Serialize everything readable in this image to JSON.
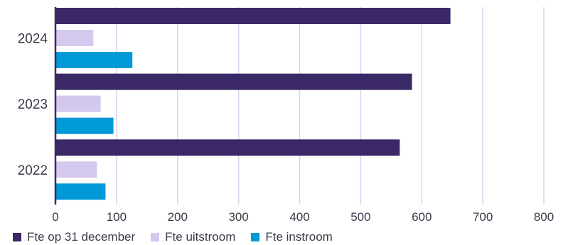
{
  "chart_data": {
    "type": "bar",
    "orientation": "horizontal",
    "categories": [
      "2024",
      "2023",
      "2022"
    ],
    "series": [
      {
        "name": "Fte op 31 december",
        "color": "#3b2866",
        "values": [
          647,
          584,
          564
        ]
      },
      {
        "name": "Fte uitstroom",
        "color": "#d4c8ee",
        "values": [
          62,
          74,
          68
        ]
      },
      {
        "name": "Fte instroom",
        "color": "#0099d8",
        "values": [
          126,
          95,
          82
        ]
      }
    ],
    "x_ticks": [
      "0",
      "100",
      "200",
      "300",
      "400",
      "500",
      "600",
      "700",
      "800"
    ],
    "xlim": [
      0,
      800
    ],
    "title": "",
    "xlabel": "",
    "ylabel": "",
    "grid": "vertical",
    "legend_position": "bottom-left"
  }
}
